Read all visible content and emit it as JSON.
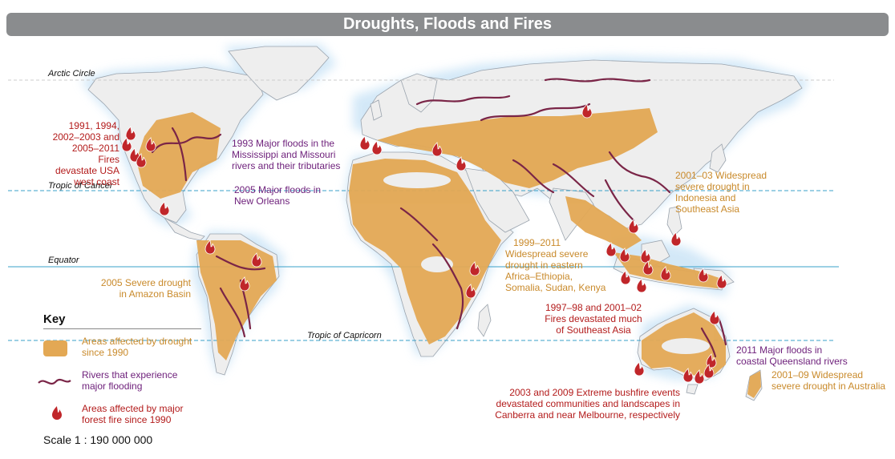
{
  "title": "Droughts, Floods and Fires",
  "lines": {
    "arctic": "Arctic Circle",
    "cancer": "Tropic of Cancer",
    "equator": "Equator",
    "capricorn": "Tropic of Capricorn"
  },
  "colors": {
    "ocean_glow": "#d9ecf8",
    "land": "#eeeeee",
    "border": "#9aa3ad",
    "drought": "#e3a854",
    "river": "#7a2547",
    "fire": "#c0262a",
    "fire_text": "#b31b1b",
    "flood_text": "#6d1f7a",
    "drought_text": "#c98a2b"
  },
  "annotations": {
    "usa_fires": [
      "1991, 1994,",
      "2002–2003 and",
      "2005–2011 Fires",
      "devastate USA",
      "west coast"
    ],
    "mississippi": [
      "1993 Major floods in the",
      "Mississippi and Missouri",
      "rivers and their tributaries"
    ],
    "new_orleans": [
      "2005 Major floods in",
      "New Orleans"
    ],
    "amazon": [
      "2005 Severe drought",
      "in Amazon Basin"
    ],
    "east_africa": [
      "1999–2011",
      "Widespread severe",
      "drought in eastern",
      "Africa–Ethiopia,",
      "Somalia, Sudan, Kenya"
    ],
    "indonesia_drought": [
      "2001–03 Widespread",
      "severe drought in",
      "Indonesia and",
      "Southeast Asia"
    ],
    "se_asia_fires": [
      "1997–98 and 2001–02",
      "Fires devastated much",
      "of Southeast Asia"
    ],
    "queensland": [
      "2011 Major floods in",
      "coastal Queensland rivers"
    ],
    "australia_drought": [
      "2001–09 Widespread",
      "severe drought in Australia"
    ],
    "bushfires": [
      "2003 and 2009 Extreme bushfire events",
      "devastated communities and landscapes in",
      "Canberra and near Melbourne, respectively"
    ]
  },
  "key": {
    "title": "Key",
    "drought": [
      "Areas affected by drought",
      "since 1990"
    ],
    "rivers": [
      "Rivers that experience",
      "major flooding"
    ],
    "fire": [
      "Areas affected by major",
      "forest fire since 1990"
    ]
  },
  "scale": "Scale 1 : 190 000 000"
}
